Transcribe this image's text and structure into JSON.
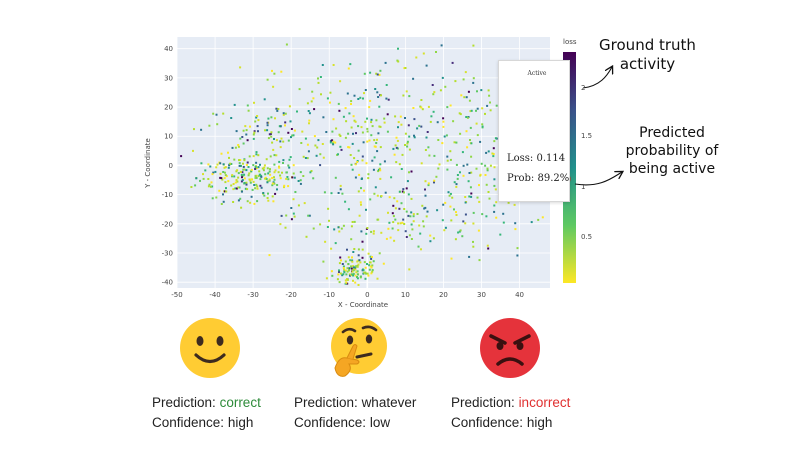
{
  "chart_data": {
    "type": "scatter",
    "title": "",
    "xlabel": "X - Coordinate",
    "ylabel": "Y - Coordinate",
    "xlim": [
      -50,
      48
    ],
    "ylim": [
      -42,
      44
    ],
    "xticks": [
      -50,
      -40,
      -30,
      -20,
      -10,
      0,
      10,
      20,
      30,
      40
    ],
    "yticks": [
      -40,
      -30,
      -20,
      -10,
      0,
      10,
      20,
      30,
      40
    ],
    "grid": true,
    "color_variable": "loss",
    "colorscale": "viridis_reversed",
    "colorbar": {
      "title": "loss",
      "range": [
        0,
        2.3
      ],
      "ticks": [
        0.5,
        1,
        1.5,
        2
      ]
    },
    "clusters": [
      {
        "name": "left dense cluster",
        "x_center": -31,
        "y_center": -4,
        "x_spread": 7,
        "y_spread": 4,
        "count": 230
      },
      {
        "name": "bottom cluster",
        "x_center": -3,
        "y_center": -36,
        "x_spread": 3,
        "y_spread": 3,
        "count": 120
      },
      {
        "name": "upper-left band",
        "x_center": -27,
        "y_center": 12,
        "x_spread": 8,
        "y_spread": 5,
        "count": 90
      },
      {
        "name": "center region",
        "x_center": -2,
        "y_center": 10,
        "x_spread": 12,
        "y_spread": 14,
        "count": 260
      },
      {
        "name": "right region",
        "x_center": 30,
        "y_center": 5,
        "x_spread": 9,
        "y_spread": 15,
        "count": 200
      },
      {
        "name": "lower-middle region",
        "x_center": 10,
        "y_center": -20,
        "x_spread": 14,
        "y_spread": 7,
        "count": 150
      }
    ],
    "hover_point": {
      "label": "Active",
      "loss": 0.114,
      "probability_percent": 89.2
    }
  },
  "tooltip": {
    "activity_label": "Active",
    "loss_text": "Loss: 0.114",
    "prob_text": "Prob: 89.2%"
  },
  "annotations": {
    "ground_truth": "Ground truth activity",
    "predicted": "Predicted probability of being active"
  },
  "cases": [
    {
      "emoji": "slightly-smiling-face",
      "prediction_label": "Prediction:",
      "prediction_value": "correct",
      "value_color": "#2e8b3a",
      "confidence_label": "Confidence:",
      "confidence_value": "high"
    },
    {
      "emoji": "thinking-face",
      "prediction_label": "Prediction:",
      "prediction_value": "whatever",
      "value_color": "#222222",
      "confidence_label": "Confidence:",
      "confidence_value": "low"
    },
    {
      "emoji": "angry-face",
      "prediction_label": "Prediction:",
      "prediction_value": "incorrect",
      "value_color": "#e03030",
      "confidence_label": "Confidence:",
      "confidence_value": "high"
    }
  ],
  "colors": {
    "plot_bg": "#e6ecf5",
    "grid": "#ffffff",
    "annotation_circle": "#c0392b",
    "emoji_yellow": "#ffcc33",
    "emoji_red": "#e5333b"
  }
}
